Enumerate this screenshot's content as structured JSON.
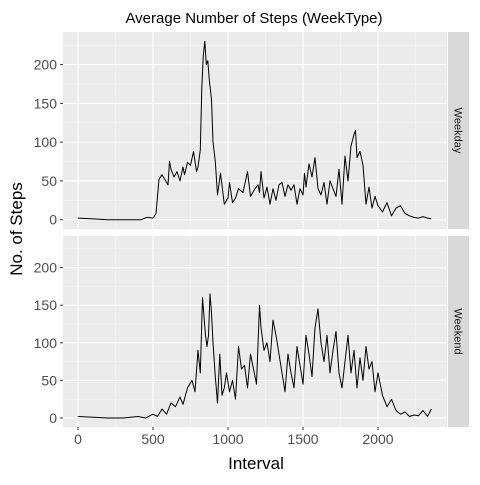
{
  "chart_data": {
    "type": "line",
    "title": "Average Number of Steps (WeekType)",
    "xlabel": "Interval",
    "ylabel": "No. of Steps",
    "xlim": [
      -100,
      2460
    ],
    "ylim": [
      -12,
      242
    ],
    "x_ticks": [
      0,
      500,
      1000,
      1500,
      2000
    ],
    "y_ticks": [
      0,
      50,
      100,
      150,
      200
    ],
    "grid": true,
    "facet_layout": "rows",
    "panels": [
      {
        "strip_label": "Weekday",
        "series": [
          {
            "x": [
              0,
              100,
              200,
              300,
              400,
              420,
              460,
              500,
              520,
              540,
              560,
              600,
              610,
              620,
              640,
              660,
              680,
              700,
              710,
              730,
              750,
              770,
              790,
              800,
              815,
              825,
              835,
              845,
              855,
              865,
              875,
              890,
              900,
              915,
              930,
              950,
              975,
              1000,
              1010,
              1030,
              1050,
              1070,
              1100,
              1130,
              1150,
              1180,
              1200,
              1210,
              1220,
              1240,
              1260,
              1280,
              1300,
              1320,
              1340,
              1360,
              1380,
              1400,
              1420,
              1440,
              1460,
              1480,
              1500,
              1510,
              1520,
              1540,
              1560,
              1580,
              1600,
              1620,
              1640,
              1660,
              1680,
              1700,
              1720,
              1740,
              1760,
              1780,
              1800,
              1820,
              1840,
              1850,
              1860,
              1880,
              1900,
              1920,
              1940,
              1960,
              1980,
              2000,
              2030,
              2060,
              2090,
              2120,
              2150,
              2180,
              2210,
              2240,
              2270,
              2300,
              2330,
              2355
            ],
            "y": [
              2,
              1,
              0,
              0,
              0,
              0,
              3,
              2,
              8,
              52,
              58,
              45,
              75,
              65,
              55,
              62,
              50,
              68,
              58,
              74,
              70,
              88,
              62,
              68,
              90,
              170,
              212,
              230,
              200,
              205,
              180,
              155,
              100,
              75,
              32,
              60,
              20,
              28,
              48,
              22,
              28,
              40,
              35,
              62,
              30,
              40,
              45,
              35,
              62,
              28,
              42,
              20,
              40,
              25,
              45,
              48,
              30,
              45,
              38,
              45,
              20,
              40,
              32,
              60,
              42,
              72,
              55,
              80,
              40,
              32,
              48,
              20,
              50,
              40,
              30,
              65,
              20,
              82,
              50,
              95,
              110,
              115,
              80,
              88,
              70,
              20,
              42,
              15,
              30,
              18,
              10,
              22,
              5,
              15,
              18,
              8,
              5,
              3,
              2,
              4,
              2,
              1
            ]
          }
        ]
      },
      {
        "strip_label": "Weekend",
        "series": [
          {
            "x": [
              0,
              100,
              200,
              300,
              400,
              450,
              500,
              530,
              560,
              590,
              620,
              650,
              680,
              700,
              730,
              760,
              780,
              800,
              815,
              830,
              840,
              850,
              860,
              870,
              880,
              890,
              900,
              915,
              930,
              945,
              960,
              975,
              990,
              1010,
              1030,
              1050,
              1070,
              1090,
              1110,
              1130,
              1150,
              1170,
              1190,
              1210,
              1220,
              1240,
              1260,
              1280,
              1300,
              1320,
              1340,
              1360,
              1380,
              1400,
              1420,
              1440,
              1460,
              1480,
              1500,
              1520,
              1540,
              1560,
              1580,
              1600,
              1620,
              1640,
              1660,
              1680,
              1700,
              1720,
              1740,
              1760,
              1780,
              1800,
              1820,
              1840,
              1860,
              1880,
              1900,
              1920,
              1940,
              1960,
              1980,
              2000,
              2030,
              2060,
              2090,
              2120,
              2150,
              2180,
              2210,
              2240,
              2270,
              2300,
              2330,
              2355
            ],
            "y": [
              2,
              1,
              0,
              0,
              2,
              0,
              5,
              2,
              12,
              5,
              20,
              15,
              28,
              18,
              40,
              50,
              35,
              90,
              60,
              160,
              135,
              110,
              95,
              110,
              165,
              140,
              100,
              55,
              20,
              85,
              30,
              40,
              60,
              35,
              50,
              25,
              95,
              65,
              70,
              40,
              85,
              65,
              45,
              150,
              120,
              90,
              100,
              75,
              130,
              110,
              85,
              60,
              35,
              85,
              60,
              40,
              95,
              70,
              45,
              110,
              85,
              55,
              120,
              145,
              100,
              75,
              110,
              60,
              90,
              115,
              60,
              40,
              75,
              110,
              60,
              90,
              40,
              80,
              50,
              95,
              65,
              75,
              35,
              60,
              30,
              15,
              25,
              10,
              5,
              8,
              2,
              4,
              3,
              10,
              2,
              12
            ]
          }
        ]
      }
    ]
  }
}
